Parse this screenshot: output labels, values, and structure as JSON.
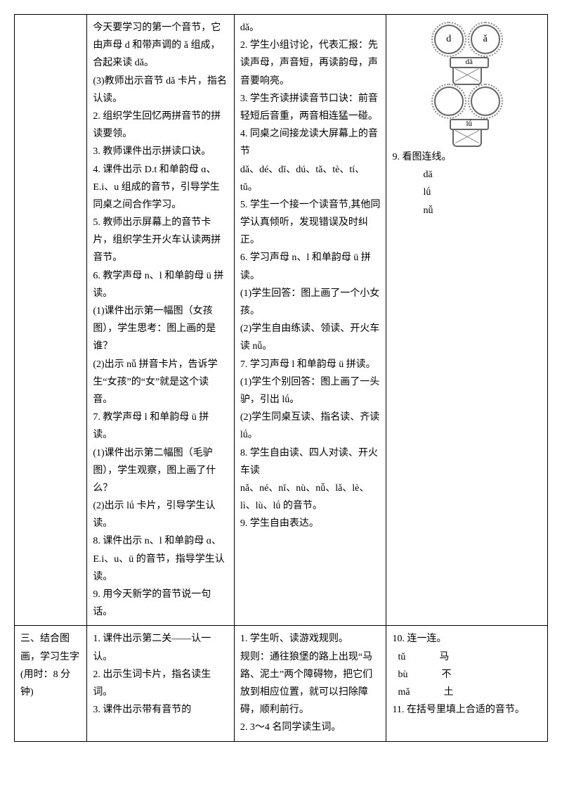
{
  "row1": {
    "col1": "",
    "col2": [
      "今天要学习的第一个音节，它由声母 d 和带声调的 ǎ 组成，合起来读 dǎ。",
      "(3)教师出示音节 dǎ 卡片，指名认读。",
      "2. 组织学生回忆两拼音节的拼读要领。",
      "3. 教师课件出示拼读口诀。",
      "4. 课件出示 D.t 和单韵母 ɑ、E.i、u 组成的音节，引导学生同桌之间合作学习。",
      "5. 教师出示屏幕上的音节卡片，组织学生开火车认读两拼音节。",
      "6. 教学声母 n、l 和单韵母 ü 拼读。",
      "(1)课件出示第一幅图（女孩图），学生思考：图上画的是谁？",
      "(2)出示 nǚ 拼音卡片，告诉学生“女孩”的“女”就是这个读音。",
      "7. 教学声母 l 和单韵母 ü 拼读。",
      "(1)课件出示第二幅图（毛驴图），学生观察，图上画了什么？",
      "(2)出示 lǘ 卡片，引导学生认读。",
      "8. 课件出示 n、l 和单韵母 ɑ、E.i、u、ü 的音节，指导学生认读。",
      "9. 用今天新学的音节说一句话。"
    ],
    "col3": [
      "dǎ。",
      "2. 学生小组讨论，代表汇报：先读声母，声音短，再读韵母，声音要响亮。",
      "3. 学生齐读拼读音节口诀：前音轻短后音重，两音相连猛一碰。",
      "4. 同桌之间接龙读大屏幕上的音节",
      "dǎ、dé、dī、dú、tǎ、tè、tí、tǔ。",
      "5. 学生一个接一个读音节,其他同学认真倾听，发现错误及时纠正。",
      "6. 学习声母 n、l 和单韵母 ü 拼读。",
      "(1)学生回答：图上画了一个小女孩。",
      "(2)学生自由练读、领读、开火车读 nǚ。",
      "7. 学习声母 l 和单韵母 ü 拼读。",
      "(1)学生个别回答：图上画了一头驴，引出 lǘ。",
      "(2)学生同桌互读、指名读、齐读 lǘ。",
      "8. 学生自由读、四人对读、开火车读",
      "nǎ、né、nī、nù、nǚ、lǎ、lè、lì、lù、lǘ 的音节。",
      "",
      "9. 学生自由表达。"
    ],
    "col4": {
      "pot1": {
        "left": "d",
        "right": "ǎ",
        "label": "dǎ"
      },
      "pot2": {
        "left": "",
        "right": "",
        "label": "lǘ"
      },
      "line9": "9. 看图连线。",
      "items": [
        "dā",
        "lǘ",
        "nǚ"
      ]
    }
  },
  "row2": {
    "col1": "三、结合图画，学习生字(用时：8 分钟)",
    "col2": [
      "1. 课件出示第二关——认一认。",
      "",
      "2. 出示生词卡片，指名读生词。",
      "3. 课件出示带有音节的"
    ],
    "col3": [
      "1. 学生听、读游戏规则。",
      "规则：通往狼堡的路上出现“马路、泥土”两个障碍物，把它们放到相应位置，就可以扫除障碍，顺利前行。",
      "2. 3～4 名同学读生词。"
    ],
    "col4": {
      "line10": "10. 连一连。",
      "pairs": [
        {
          "l": "tǔ",
          "r": "马"
        },
        {
          "l": "bù",
          "r": "不"
        },
        {
          "l": "mǎ",
          "r": "土"
        }
      ],
      "line11": "11. 在括号里填上合适的音节。"
    }
  }
}
